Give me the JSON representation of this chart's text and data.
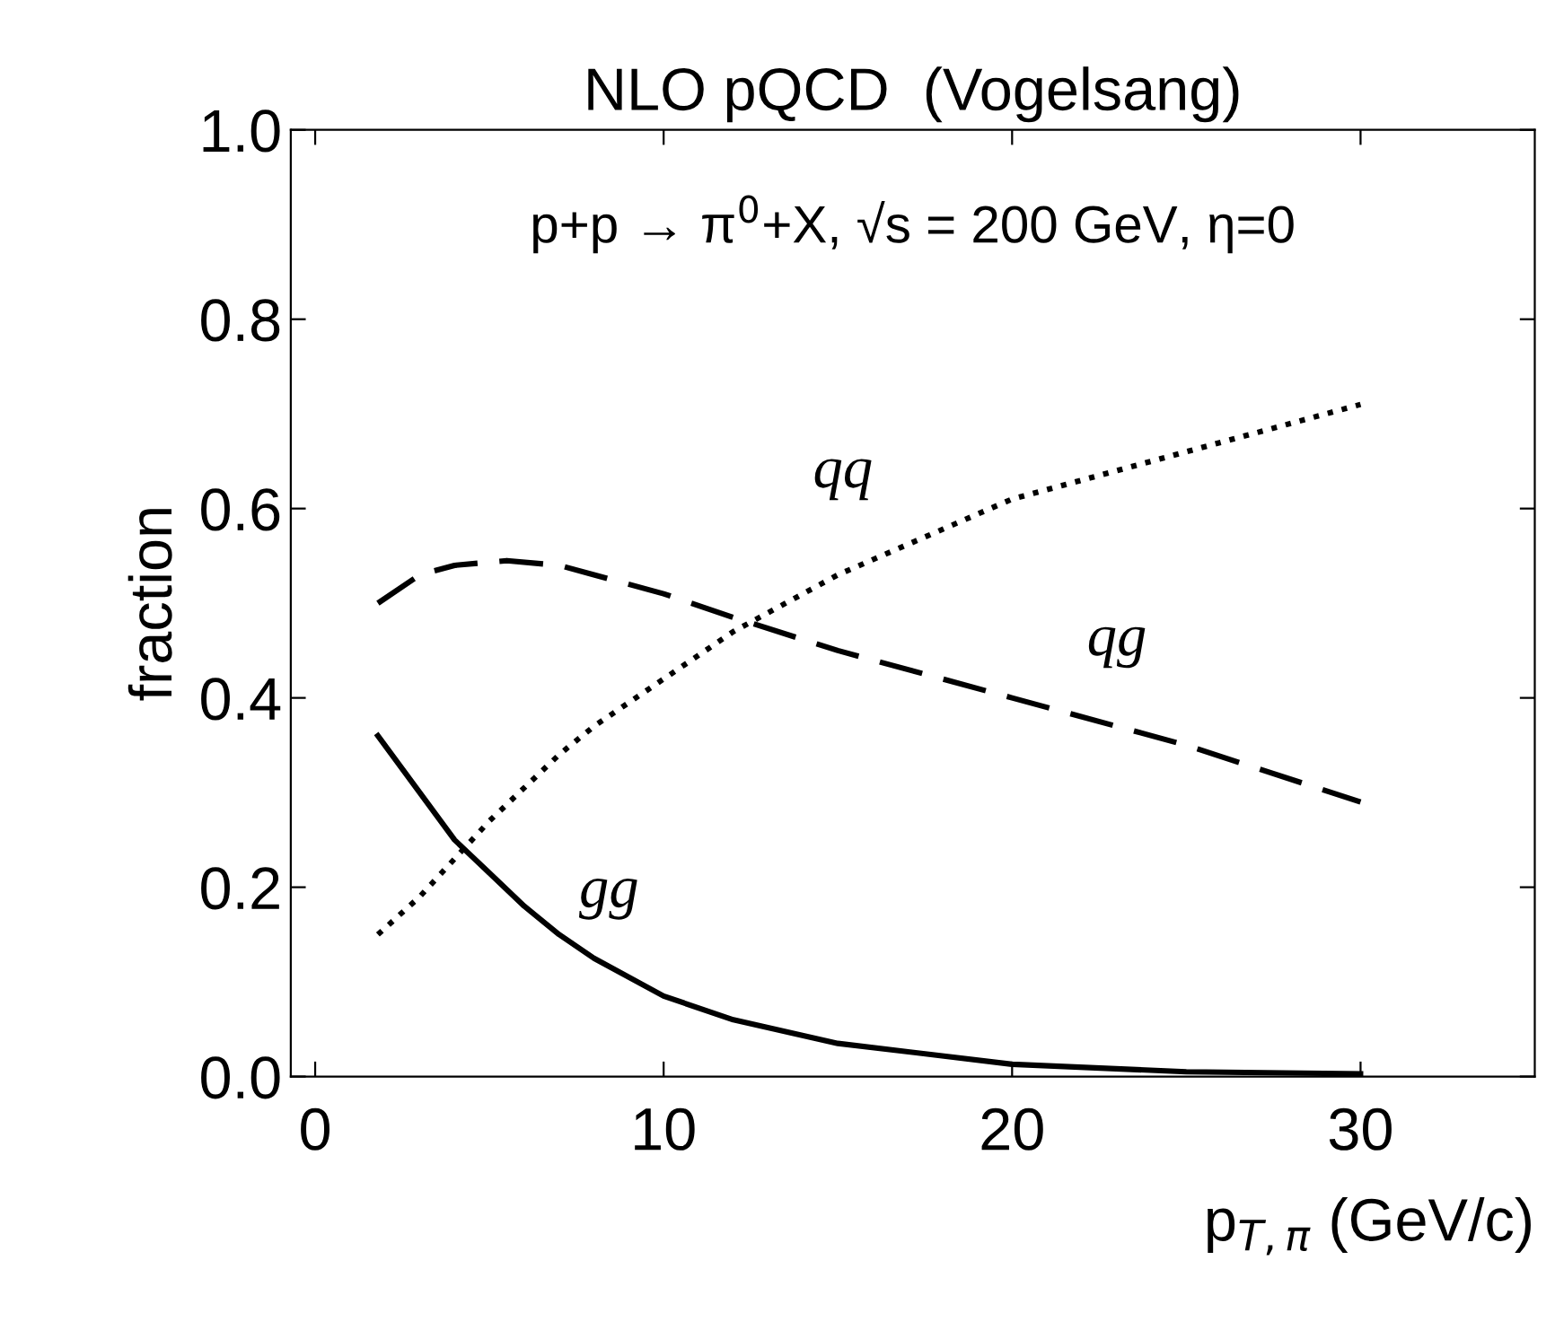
{
  "chart_data": {
    "type": "line",
    "title": "NLO pQCD  (Vogelsang)",
    "xlabel": "p$_{T,π}$ (GeV/c)",
    "ylabel": "fraction",
    "xlim": [
      -0.7,
      35
    ],
    "ylim": [
      0,
      1.0
    ],
    "xticks": [
      0,
      10,
      20,
      30
    ],
    "yticks": [
      {
        "value": 0,
        "label": "0.0"
      },
      {
        "value": 0.2,
        "label": "0.2"
      },
      {
        "value": 0.4,
        "label": "0.4"
      },
      {
        "value": 0.6,
        "label": "0.6"
      },
      {
        "value": 0.8,
        "label": "0.8"
      },
      {
        "value": 1.0,
        "label": "1.0"
      }
    ],
    "grid": false,
    "legend": false,
    "series": [
      {
        "name": "gg",
        "color": "#000000",
        "line_style": "solid",
        "x": [
          1.8,
          3,
          4,
          5,
          6,
          7,
          8,
          10,
          12,
          15,
          20,
          25,
          30
        ],
        "values": [
          0.36,
          0.3,
          0.25,
          0.215,
          0.18,
          0.15,
          0.125,
          0.085,
          0.06,
          0.035,
          0.013,
          0.005,
          0.003
        ]
      },
      {
        "name": "qg",
        "color": "#000000",
        "line_style": "dashed",
        "x": [
          1.8,
          3,
          4,
          5.5,
          7,
          8,
          10,
          12,
          15,
          20,
          25,
          30
        ],
        "values": [
          0.5,
          0.53,
          0.54,
          0.545,
          0.54,
          0.53,
          0.51,
          0.485,
          0.45,
          0.4,
          0.35,
          0.29
        ]
      },
      {
        "name": "qq",
        "color": "#000000",
        "line_style": "dotted",
        "x": [
          1.8,
          3,
          4,
          5,
          7,
          8,
          10,
          12,
          15,
          20,
          25,
          30
        ],
        "values": [
          0.15,
          0.19,
          0.23,
          0.27,
          0.34,
          0.37,
          0.42,
          0.47,
          0.53,
          0.61,
          0.66,
          0.71
        ]
      }
    ],
    "annotations": [
      "p+p → π$^{0}$+X, √s = 200 GeV, η=0"
    ]
  }
}
